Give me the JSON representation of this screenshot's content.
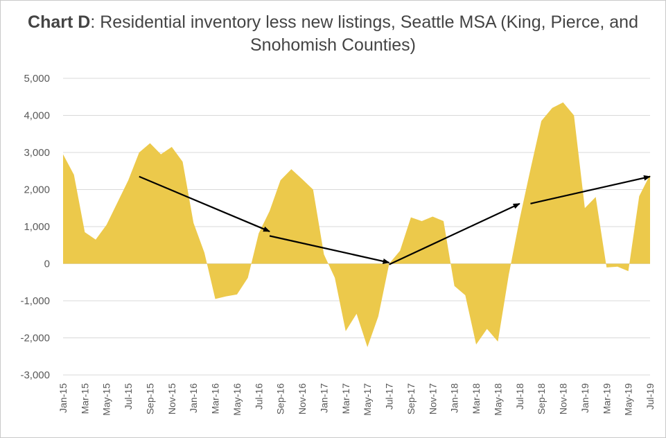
{
  "chart_data": {
    "type": "area",
    "title_bold": "Chart D",
    "title_rest": ": Residential inventory less new listings, Seattle MSA (King, Pierce, and Snohomish Counties)",
    "xlabel": "",
    "ylabel": "",
    "ylim": [
      -3000,
      5000
    ],
    "yticks": [
      5000,
      4000,
      3000,
      2000,
      1000,
      0,
      -1000,
      -2000,
      -3000
    ],
    "ytick_labels": [
      "5,000",
      "4,000",
      "3,000",
      "2,000",
      "1,000",
      "0",
      "-1,000",
      "-2,000",
      "-3,000"
    ],
    "grid": true,
    "legend": "none",
    "fill_color": "#ECC94B",
    "arrow_color": "#000000",
    "x": [
      "Jan-15",
      "Feb-15",
      "Mar-15",
      "Apr-15",
      "May-15",
      "Jun-15",
      "Jul-15",
      "Aug-15",
      "Sep-15",
      "Oct-15",
      "Nov-15",
      "Dec-15",
      "Jan-16",
      "Feb-16",
      "Mar-16",
      "Apr-16",
      "May-16",
      "Jun-16",
      "Jul-16",
      "Aug-16",
      "Sep-16",
      "Oct-16",
      "Nov-16",
      "Dec-16",
      "Jan-17",
      "Feb-17",
      "Mar-17",
      "Apr-17",
      "May-17",
      "Jun-17",
      "Jul-17",
      "Aug-17",
      "Sep-17",
      "Oct-17",
      "Nov-17",
      "Dec-17",
      "Jan-18",
      "Feb-18",
      "Mar-18",
      "Apr-18",
      "May-18",
      "Jun-18",
      "Jul-18",
      "Aug-18",
      "Sep-18",
      "Oct-18",
      "Nov-18",
      "Dec-18",
      "Jan-19",
      "Feb-19",
      "Mar-19",
      "Apr-19",
      "May-19",
      "Jun-19",
      "Jul-19"
    ],
    "x_tick_labels": [
      "Jan-15",
      "Mar-15",
      "May-15",
      "Jul-15",
      "Sep-15",
      "Nov-15",
      "Jan-16",
      "Mar-16",
      "May-16",
      "Jul-16",
      "Sep-16",
      "Nov-16",
      "Jan-17",
      "Mar-17",
      "May-17",
      "Jul-17",
      "Sep-17",
      "Nov-17",
      "Jan-18",
      "Mar-18",
      "May-18",
      "Jul-18",
      "Sep-18",
      "Nov-18",
      "Jan-19",
      "Mar-19",
      "May-19",
      "Jul-19"
    ],
    "series": [
      {
        "values": [
          2950,
          2400,
          850,
          650,
          1050,
          1650,
          2250,
          3000,
          3250,
          2950,
          3150,
          2750,
          1100,
          300,
          -950,
          -880,
          -830,
          -380,
          820,
          1420,
          2250,
          2550,
          2280,
          2000,
          250,
          -380,
          -1820,
          -1350,
          -2250,
          -1420,
          0,
          350,
          1250,
          1150,
          1270,
          1150,
          -600,
          -850,
          -2180,
          -1760,
          -2100,
          -300,
          1200,
          2550,
          3850,
          4200,
          4350,
          4000,
          1500,
          1800,
          -100,
          -80,
          -200,
          1820,
          2400
        ]
      }
    ],
    "trend_arrows": [
      {
        "from": [
          "Aug-15",
          2350
        ],
        "to": [
          "Aug-16",
          870
        ]
      },
      {
        "from": [
          "Aug-16",
          750
        ],
        "to": [
          "Jul-17",
          30
        ]
      },
      {
        "from": [
          "Jul-17",
          -20
        ],
        "to": [
          "Jul-18",
          1620
        ]
      },
      {
        "from": [
          "Aug-18",
          1620
        ],
        "to": [
          "Jul-19",
          2350
        ]
      }
    ]
  }
}
